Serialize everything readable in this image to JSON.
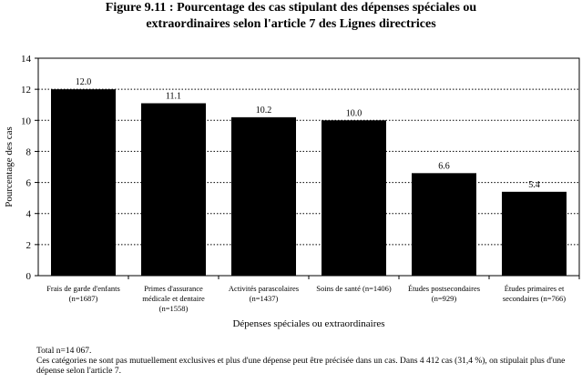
{
  "title_line1": "Figure 9.11 : Pourcentage des cas stipulant des dépenses spéciales ou",
  "title_line2": "extraordinaires selon l'article 7 des Lignes directrices",
  "chart_data": {
    "type": "bar",
    "categories": [
      [
        "Frais de garde d'enfants",
        "(n=1687)"
      ],
      [
        "Primes d'assurance",
        "médicale et dentaire",
        "(n=1558)"
      ],
      [
        "Activités parascolaires",
        "(n=1437)"
      ],
      [
        "Soins de santé (n=1406)"
      ],
      [
        "Études postsecondaires",
        "(n=929)"
      ],
      [
        "Études primaires et",
        "secondaires (n=766)"
      ]
    ],
    "values": [
      12.0,
      11.1,
      10.2,
      10.0,
      6.6,
      5.4
    ],
    "value_labels": [
      "12.0",
      "11.1",
      "10.2",
      "10.0",
      "6.6",
      "5.4"
    ],
    "ylabel": "Pourcentage des cas",
    "xlabel": "Dépenses spéciales ou extraordinaires",
    "ylim": [
      0,
      14
    ],
    "yticks": [
      0,
      2,
      4,
      6,
      8,
      10,
      12,
      14
    ],
    "grid": "horizontal-dotted",
    "bar_color": "#000000"
  },
  "notes": {
    "line1": "Total n=14 067.",
    "line2": "Ces catégories ne sont pas mutuellement exclusives et plus d'une dépense peut être précisée dans un cas. Dans 4 412 cas (31,4 %), on stipulait plus d'une dépense selon l'article 7."
  }
}
